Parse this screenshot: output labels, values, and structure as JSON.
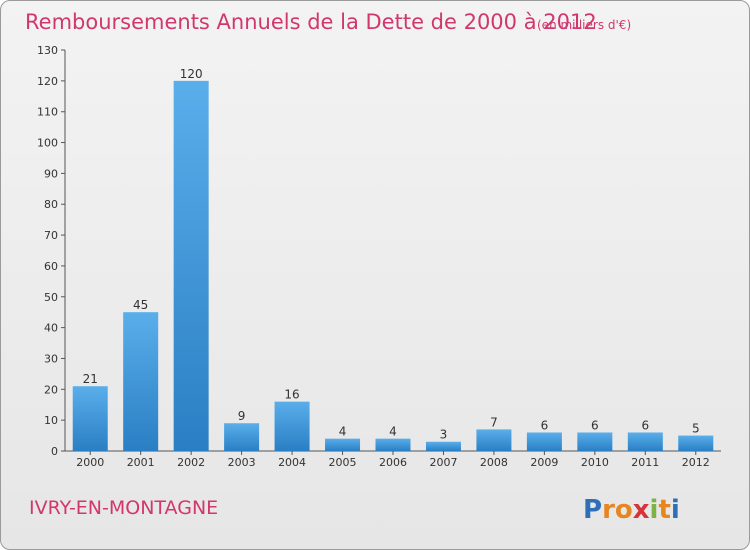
{
  "chart_data": {
    "type": "bar",
    "title": "Remboursements Annuels de la Dette de 2000 à 2012",
    "subtitle": "(en milliers d'€)",
    "categories": [
      "2000",
      "2001",
      "2002",
      "2003",
      "2004",
      "2005",
      "2006",
      "2007",
      "2008",
      "2009",
      "2010",
      "2011",
      "2012"
    ],
    "values": [
      21,
      45,
      120,
      9,
      16,
      4,
      4,
      3,
      7,
      6,
      6,
      6,
      5
    ],
    "ylim": [
      0,
      130
    ],
    "yticks": [
      0,
      10,
      20,
      30,
      40,
      50,
      60,
      70,
      80,
      90,
      100,
      110,
      120,
      130
    ],
    "grid": false,
    "bar_color": "#3b93d8"
  },
  "commune": "IVRY-EN-MONTAGNE",
  "logo": {
    "letters": [
      "P",
      "r",
      "o",
      "x",
      "i",
      "t",
      "i"
    ],
    "colors": [
      "#2f6fb7",
      "#e7861e",
      "#e7861e",
      "#d8323a",
      "#7cb342",
      "#e7861e",
      "#2f6fb7"
    ]
  }
}
